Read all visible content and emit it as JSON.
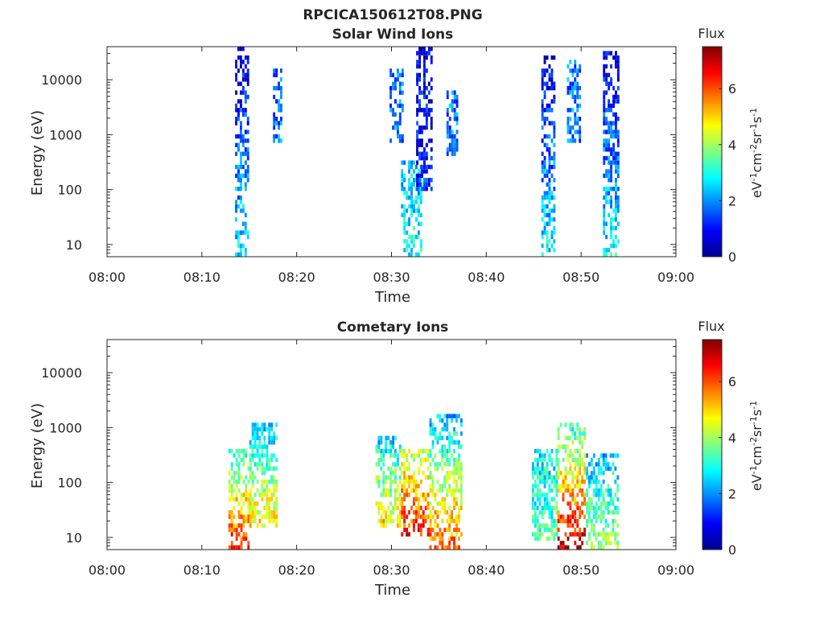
{
  "figure_title": "RPCICA150612T08.PNG",
  "colors": {
    "colormap": [
      "#00008f",
      "#0000ff",
      "#0080ff",
      "#00ffff",
      "#80ff80",
      "#ffff00",
      "#ff8000",
      "#ff0000",
      "#800000"
    ]
  },
  "chart_data": [
    {
      "type": "heatmap",
      "title": "Solar Wind Ions",
      "xlabel": "Time",
      "ylabel": "Energy (eV)",
      "x_ticks": [
        "08:00",
        "08:10",
        "08:20",
        "08:30",
        "08:40",
        "08:50",
        "09:00"
      ],
      "y_ticks": [
        "10",
        "100",
        "1000",
        "10000"
      ],
      "y_scale": "log",
      "ylim": [
        6,
        40000
      ],
      "xlim": [
        "08:00",
        "09:00"
      ],
      "colorbar": {
        "title": "Flux",
        "label": "eV-1cm-2sr-1s-1",
        "ticks": [
          "0",
          "2",
          "4",
          "6"
        ],
        "range": [
          0,
          7.5
        ]
      },
      "bursts": [
        {
          "start_min": 13.5,
          "end_min": 15.0,
          "emin": 6,
          "emax": 35000,
          "level_low": 2.6,
          "level_high": 0.6
        },
        {
          "start_min": 17.5,
          "end_min": 18.3,
          "emin": 600,
          "emax": 14000,
          "level_low": 1.8,
          "level_high": 1.6
        },
        {
          "start_min": 31.0,
          "end_min": 33.2,
          "emin": 6,
          "emax": 300,
          "level_low": 3.0,
          "level_high": 2.2
        },
        {
          "start_min": 32.6,
          "end_min": 34.3,
          "emin": 80,
          "emax": 35000,
          "level_low": 1.2,
          "level_high": 0.6
        },
        {
          "start_min": 29.8,
          "end_min": 31.2,
          "emin": 600,
          "emax": 14000,
          "level_low": 1.8,
          "level_high": 1.8
        },
        {
          "start_min": 35.8,
          "end_min": 37.0,
          "emin": 350,
          "emax": 6000,
          "level_low": 1.8,
          "level_high": 1.8
        },
        {
          "start_min": 45.8,
          "end_min": 47.3,
          "emin": 6,
          "emax": 25000,
          "level_low": 2.8,
          "level_high": 0.6
        },
        {
          "start_min": 48.5,
          "end_min": 49.8,
          "emin": 600,
          "emax": 20000,
          "level_low": 1.8,
          "level_high": 1.8
        },
        {
          "start_min": 52.3,
          "end_min": 53.9,
          "emin": 6,
          "emax": 30000,
          "level_low": 2.8,
          "level_high": 0.6
        }
      ]
    },
    {
      "type": "heatmap",
      "title": "Cometary Ions",
      "xlabel": "Time",
      "ylabel": "Energy (eV)",
      "x_ticks": [
        "08:00",
        "08:10",
        "08:20",
        "08:30",
        "08:40",
        "08:50",
        "09:00"
      ],
      "y_ticks": [
        "10",
        "100",
        "1000",
        "10000"
      ],
      "y_scale": "log",
      "ylim": [
        6,
        40000
      ],
      "xlim": [
        "08:00",
        "09:00"
      ],
      "colorbar": {
        "title": "Flux",
        "label": "eV-1cm-2sr-1s-1",
        "ticks": [
          "0",
          "2",
          "4",
          "6"
        ],
        "range": [
          0,
          7.5
        ]
      },
      "bursts": [
        {
          "start_min": 12.8,
          "end_min": 15.0,
          "emin": 6,
          "emax": 350,
          "level_low": 6.5,
          "level_high": 3.0
        },
        {
          "start_min": 15.0,
          "end_min": 18.0,
          "emin": 15,
          "emax": 1200,
          "level_low": 5.0,
          "level_high": 2.2
        },
        {
          "start_min": 28.3,
          "end_min": 31.0,
          "emin": 15,
          "emax": 600,
          "level_low": 5.0,
          "level_high": 2.5
        },
        {
          "start_min": 31.0,
          "end_min": 34.0,
          "emin": 10,
          "emax": 400,
          "level_low": 6.5,
          "level_high": 4.0
        },
        {
          "start_min": 34.0,
          "end_min": 37.5,
          "emin": 6,
          "emax": 1500,
          "level_low": 6.0,
          "level_high": 2.2
        },
        {
          "start_min": 44.8,
          "end_min": 47.5,
          "emin": 8,
          "emax": 400,
          "level_low": 3.5,
          "level_high": 2.5
        },
        {
          "start_min": 47.5,
          "end_min": 50.5,
          "emin": 6,
          "emax": 1200,
          "level_low": 7.0,
          "level_high": 3.0
        },
        {
          "start_min": 50.5,
          "end_min": 54.0,
          "emin": 6,
          "emax": 300,
          "level_low": 4.0,
          "level_high": 2.2
        }
      ]
    }
  ]
}
